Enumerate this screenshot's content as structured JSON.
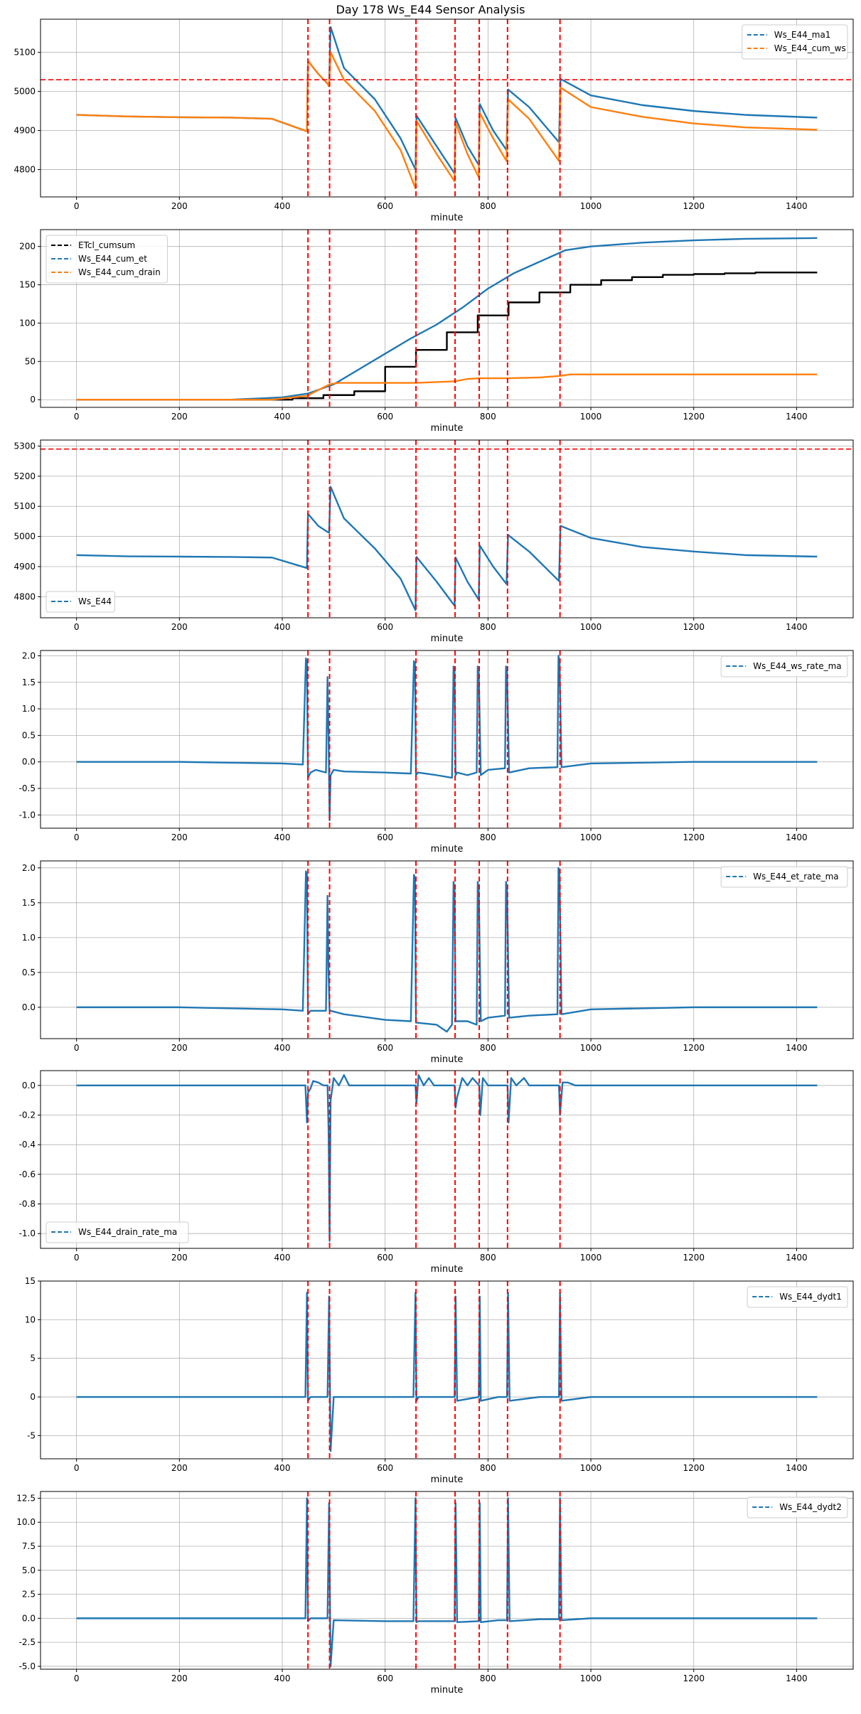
{
  "figure_title": "Day 178 Ws_E44 Sensor Analysis",
  "colors": {
    "blue": "#1f77b4",
    "orange": "#ff7f0e",
    "black": "#000000",
    "red": "#ff0000",
    "grid": "#b0b0b0"
  },
  "event_minutes": [
    450,
    492,
    660,
    736,
    783,
    838,
    940
  ],
  "x_axis": {
    "label": "minute",
    "ticks": [
      0,
      200,
      400,
      600,
      800,
      1000,
      1200,
      1400
    ],
    "xlim": [
      -70,
      1510
    ]
  },
  "chart_data": [
    {
      "type": "line",
      "ylim": [
        4730,
        5185
      ],
      "yticks": [
        4800,
        4900,
        5000,
        5100
      ],
      "hline": 5030,
      "legend": "top-right",
      "series": [
        {
          "name": "Ws_E44_ma1",
          "color": "#1f77b4",
          "x": [
            0,
            100,
            200,
            300,
            380,
            448,
            450,
            470,
            488,
            491,
            494,
            520,
            580,
            630,
            659,
            661,
            700,
            735,
            737,
            760,
            782,
            784,
            810,
            836,
            839,
            880,
            938,
            941,
            1000,
            1100,
            1200,
            1300,
            1440
          ],
          "y": [
            4940,
            4936,
            4934,
            4933,
            4930,
            4898,
            5078,
            5045,
            5020,
            5013,
            5165,
            5060,
            4980,
            4880,
            4800,
            4938,
            4860,
            4790,
            4932,
            4860,
            4812,
            4968,
            4900,
            4850,
            5005,
            4960,
            4870,
            5032,
            4990,
            4965,
            4950,
            4940,
            4933
          ]
        },
        {
          "name": "Ws_E44_cum_ws",
          "color": "#ff7f0e",
          "x": [
            0,
            100,
            200,
            300,
            380,
            448,
            450,
            470,
            488,
            491,
            494,
            520,
            580,
            630,
            659,
            661,
            700,
            735,
            737,
            760,
            782,
            784,
            810,
            836,
            839,
            880,
            938,
            941,
            1000,
            1100,
            1200,
            1300,
            1440
          ],
          "y": [
            4940,
            4936,
            4934,
            4933,
            4930,
            4898,
            5078,
            5045,
            5020,
            5013,
            5100,
            5030,
            4950,
            4850,
            4752,
            4925,
            4840,
            4770,
            4920,
            4840,
            4780,
            4945,
            4880,
            4822,
            4980,
            4930,
            4822,
            5010,
            4960,
            4935,
            4918,
            4908,
            4902
          ]
        }
      ]
    },
    {
      "type": "line",
      "ylim": [
        -10,
        222
      ],
      "yticks": [
        0,
        50,
        100,
        150,
        200
      ],
      "legend": "top-left",
      "series": [
        {
          "name": "ETcl_cumsum",
          "color": "#000000",
          "step": true,
          "x": [
            0,
            360,
            420,
            480,
            540,
            600,
            660,
            720,
            780,
            840,
            900,
            960,
            1020,
            1080,
            1140,
            1200,
            1260,
            1320,
            1380,
            1440
          ],
          "y": [
            0,
            0,
            2,
            6,
            11,
            43,
            65,
            88,
            110,
            127,
            140,
            150,
            156,
            160,
            163,
            164,
            165,
            166,
            166,
            166
          ]
        },
        {
          "name": "Ws_E44_cum_et",
          "color": "#1f77b4",
          "x": [
            0,
            300,
            400,
            450,
            500,
            550,
            600,
            650,
            700,
            750,
            800,
            850,
            900,
            950,
            1000,
            1100,
            1200,
            1300,
            1440
          ],
          "y": [
            0,
            0,
            3,
            8,
            20,
            40,
            60,
            80,
            98,
            120,
            145,
            165,
            180,
            195,
            200,
            205,
            208,
            210,
            211
          ]
        },
        {
          "name": "Ws_E44_cum_drain",
          "color": "#ff7f0e",
          "x": [
            0,
            380,
            448,
            492,
            510,
            660,
            700,
            736,
            760,
            783,
            838,
            900,
            940,
            960,
            1100,
            1300,
            1440
          ],
          "y": [
            0,
            0,
            5,
            20,
            22,
            22,
            23,
            24,
            27,
            28,
            28,
            29,
            31,
            33,
            33,
            33,
            33
          ]
        }
      ]
    },
    {
      "type": "line",
      "ylim": [
        4730,
        5320
      ],
      "yticks": [
        4800,
        4900,
        5000,
        5100,
        5200,
        5300
      ],
      "hline": 5290,
      "legend": "bottom-left",
      "series": [
        {
          "name": "Ws_E44",
          "color": "#1f77b4",
          "x": [
            0,
            100,
            200,
            300,
            380,
            448,
            450,
            470,
            488,
            491,
            494,
            520,
            580,
            630,
            659,
            661,
            700,
            735,
            737,
            760,
            782,
            784,
            810,
            836,
            839,
            880,
            938,
            941,
            1000,
            1100,
            1200,
            1300,
            1440
          ],
          "y": [
            4938,
            4934,
            4933,
            4932,
            4930,
            4895,
            5075,
            5035,
            5015,
            5012,
            5165,
            5060,
            4960,
            4860,
            4755,
            4932,
            4850,
            4770,
            4930,
            4850,
            4790,
            4970,
            4900,
            4842,
            5005,
            4950,
            4852,
            5035,
            4995,
            4965,
            4950,
            4938,
            4933
          ]
        }
      ]
    },
    {
      "type": "line",
      "ylim": [
        -1.25,
        2.1
      ],
      "yticks": [
        -1.0,
        -0.5,
        0.0,
        0.5,
        1.0,
        1.5,
        2.0
      ],
      "legend": "top-right",
      "series": [
        {
          "name": "Ws_E44_ws_rate_ma",
          "color": "#1f77b4",
          "x": [
            0,
            200,
            400,
            440,
            446,
            448,
            450,
            455,
            465,
            485,
            488,
            490,
            492,
            494,
            500,
            520,
            600,
            650,
            656,
            658,
            660,
            664,
            700,
            730,
            733,
            735,
            737,
            740,
            760,
            778,
            780,
            782,
            786,
            800,
            833,
            835,
            837,
            841,
            880,
            935,
            937,
            939,
            943,
            1000,
            1200,
            1440
          ],
          "y": [
            0.0,
            0.0,
            -0.03,
            -0.05,
            1.95,
            1.9,
            -0.3,
            -0.2,
            -0.15,
            -0.2,
            1.6,
            0.5,
            -1.1,
            -0.25,
            -0.15,
            -0.18,
            -0.2,
            -0.22,
            1.9,
            1.85,
            -0.25,
            -0.2,
            -0.25,
            -0.3,
            1.8,
            1.7,
            -0.25,
            -0.2,
            -0.25,
            -0.2,
            1.8,
            1.7,
            -0.25,
            -0.15,
            -0.12,
            1.8,
            1.7,
            -0.2,
            -0.12,
            -0.1,
            2.0,
            1.9,
            -0.1,
            -0.03,
            0.0,
            0.0
          ]
        }
      ]
    },
    {
      "type": "line",
      "ylim": [
        -0.45,
        2.1
      ],
      "yticks": [
        0.0,
        0.5,
        1.0,
        1.5,
        2.0
      ],
      "legend": "top-right",
      "series": [
        {
          "name": "Ws_E44_et_rate_ma",
          "color": "#1f77b4",
          "x": [
            0,
            200,
            400,
            440,
            446,
            448,
            450,
            455,
            470,
            485,
            488,
            490,
            492,
            494,
            520,
            600,
            650,
            656,
            658,
            660,
            700,
            720,
            730,
            733,
            735,
            737,
            760,
            778,
            780,
            782,
            786,
            800,
            833,
            835,
            837,
            841,
            880,
            935,
            937,
            939,
            943,
            1000,
            1200,
            1440
          ],
          "y": [
            0.0,
            0.0,
            -0.03,
            -0.05,
            1.95,
            1.9,
            -0.1,
            -0.05,
            -0.05,
            -0.05,
            1.6,
            0.5,
            -0.05,
            -0.05,
            -0.1,
            -0.18,
            -0.2,
            1.9,
            1.85,
            -0.22,
            -0.25,
            -0.35,
            -0.25,
            1.8,
            1.7,
            -0.2,
            -0.2,
            -0.25,
            1.8,
            1.7,
            -0.2,
            -0.15,
            -0.12,
            1.8,
            1.7,
            -0.15,
            -0.12,
            -0.1,
            2.0,
            1.9,
            -0.1,
            -0.03,
            0.0,
            0.0
          ]
        }
      ]
    },
    {
      "type": "line",
      "ylim": [
        -1.1,
        0.1
      ],
      "yticks": [
        -1.0,
        -0.8,
        -0.6,
        -0.4,
        -0.2,
        0.0
      ],
      "legend": "bottom-left",
      "series": [
        {
          "name": "Ws_E44_drain_rate_ma",
          "color": "#1f77b4",
          "x": [
            0,
            445,
            448,
            450,
            455,
            460,
            470,
            480,
            488,
            490,
            492,
            494,
            500,
            510,
            520,
            530,
            540,
            659,
            661,
            665,
            675,
            685,
            695,
            705,
            735,
            737,
            740,
            750,
            760,
            770,
            783,
            785,
            790,
            800,
            810,
            838,
            840,
            845,
            855,
            870,
            880,
            938,
            940,
            945,
            955,
            970,
            1440
          ],
          "y": [
            0.0,
            0.0,
            -0.25,
            -0.05,
            -0.02,
            0.03,
            0.02,
            0.0,
            0.0,
            -0.3,
            -1.05,
            -0.1,
            0.05,
            0.0,
            0.07,
            0.0,
            0.0,
            0.0,
            -0.12,
            0.07,
            0.0,
            0.05,
            0.0,
            0.0,
            0.0,
            -0.15,
            -0.08,
            0.05,
            0.0,
            0.05,
            0.0,
            -0.2,
            0.05,
            0.0,
            0.0,
            0.0,
            -0.25,
            0.05,
            0.0,
            0.05,
            0.0,
            0.0,
            -0.2,
            0.02,
            0.02,
            0.0,
            0.0
          ]
        }
      ]
    },
    {
      "type": "line",
      "ylim": [
        -8,
        15
      ],
      "yticks": [
        -5,
        0,
        5,
        10,
        15
      ],
      "legend": "top-right",
      "series": [
        {
          "name": "Ws_E44_dydt1",
          "color": "#1f77b4",
          "x": [
            0,
            200,
            400,
            445,
            448,
            450,
            455,
            488,
            491,
            494,
            500,
            600,
            655,
            659,
            661,
            665,
            700,
            735,
            737,
            740,
            782,
            784,
            786,
            820,
            837,
            839,
            842,
            900,
            938,
            940,
            943,
            1000,
            1440
          ],
          "y": [
            0.0,
            0.0,
            0.0,
            0.0,
            13.5,
            -0.5,
            0.0,
            0.0,
            13.0,
            -7.0,
            0.0,
            0.0,
            0.0,
            13.5,
            -0.5,
            0.0,
            0.0,
            0.0,
            13.0,
            -0.5,
            0.0,
            13.0,
            -0.5,
            0.0,
            0.0,
            13.5,
            -0.5,
            0.0,
            0.0,
            13.5,
            -0.5,
            0.0,
            0.0
          ]
        }
      ]
    },
    {
      "type": "line",
      "ylim": [
        -5.3,
        13.2
      ],
      "yticks": [
        -5.0,
        -2.5,
        0.0,
        2.5,
        5.0,
        7.5,
        10.0,
        12.5
      ],
      "legend": "top-right",
      "series": [
        {
          "name": "Ws_E44_dydt2",
          "color": "#1f77b4",
          "x": [
            0,
            200,
            400,
            445,
            448,
            450,
            455,
            488,
            491,
            494,
            500,
            600,
            655,
            659,
            661,
            665,
            700,
            735,
            737,
            740,
            782,
            784,
            786,
            820,
            837,
            839,
            842,
            900,
            938,
            940,
            943,
            1000,
            1440
          ],
          "y": [
            0.0,
            0.0,
            0.0,
            0.0,
            12.5,
            -0.3,
            0.0,
            0.0,
            12.0,
            -5.0,
            -0.2,
            -0.3,
            -0.3,
            12.5,
            -0.4,
            -0.3,
            -0.3,
            -0.3,
            12.0,
            -0.4,
            -0.3,
            12.0,
            -0.4,
            -0.2,
            -0.2,
            12.5,
            -0.3,
            -0.1,
            -0.1,
            12.5,
            -0.2,
            0.0,
            0.0
          ]
        }
      ]
    }
  ]
}
